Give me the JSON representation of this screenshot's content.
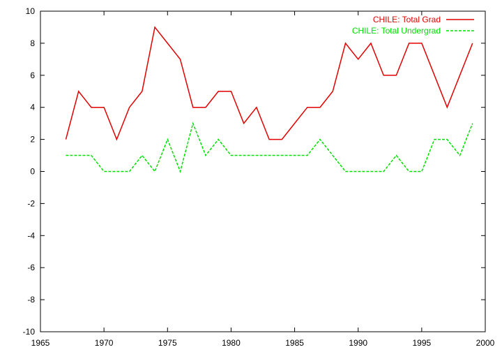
{
  "chart_data": {
    "type": "line",
    "title": "",
    "xlabel": "",
    "ylabel": "",
    "xlim": [
      1965,
      2000
    ],
    "ylim": [
      -10,
      10
    ],
    "xticks": [
      1965,
      1970,
      1975,
      1980,
      1985,
      1990,
      1995,
      2000
    ],
    "yticks": [
      -10,
      -8,
      -6,
      -4,
      -2,
      0,
      2,
      4,
      6,
      8,
      10
    ],
    "grid": false,
    "legend_position": "top-right",
    "x": [
      1967,
      1968,
      1969,
      1970,
      1971,
      1972,
      1973,
      1974,
      1975,
      1976,
      1977,
      1978,
      1979,
      1980,
      1981,
      1982,
      1983,
      1984,
      1985,
      1986,
      1987,
      1988,
      1989,
      1990,
      1991,
      1992,
      1993,
      1994,
      1995,
      1996,
      1997,
      1998,
      1999
    ],
    "series": [
      {
        "name": "CHILE: Total Grad",
        "color": "#e00000",
        "dash": "solid",
        "values": [
          2,
          5,
          4,
          4,
          2,
          4,
          5,
          9,
          8,
          7,
          4,
          4,
          5,
          5,
          3,
          4,
          2,
          2,
          3,
          4,
          4,
          5,
          8,
          7,
          8,
          6,
          6,
          8,
          8,
          null,
          4,
          null,
          8
        ]
      },
      {
        "name": "CHILE: Total Undergrad",
        "color": "#00e000",
        "dash": "dashed",
        "values": [
          1,
          1,
          1,
          0,
          0,
          0,
          1,
          0,
          2,
          0,
          3,
          1,
          2,
          1,
          1,
          1,
          1,
          1,
          1,
          1,
          2,
          1,
          0,
          0,
          0,
          0,
          1,
          0,
          0,
          2,
          2,
          1,
          3
        ]
      }
    ]
  }
}
